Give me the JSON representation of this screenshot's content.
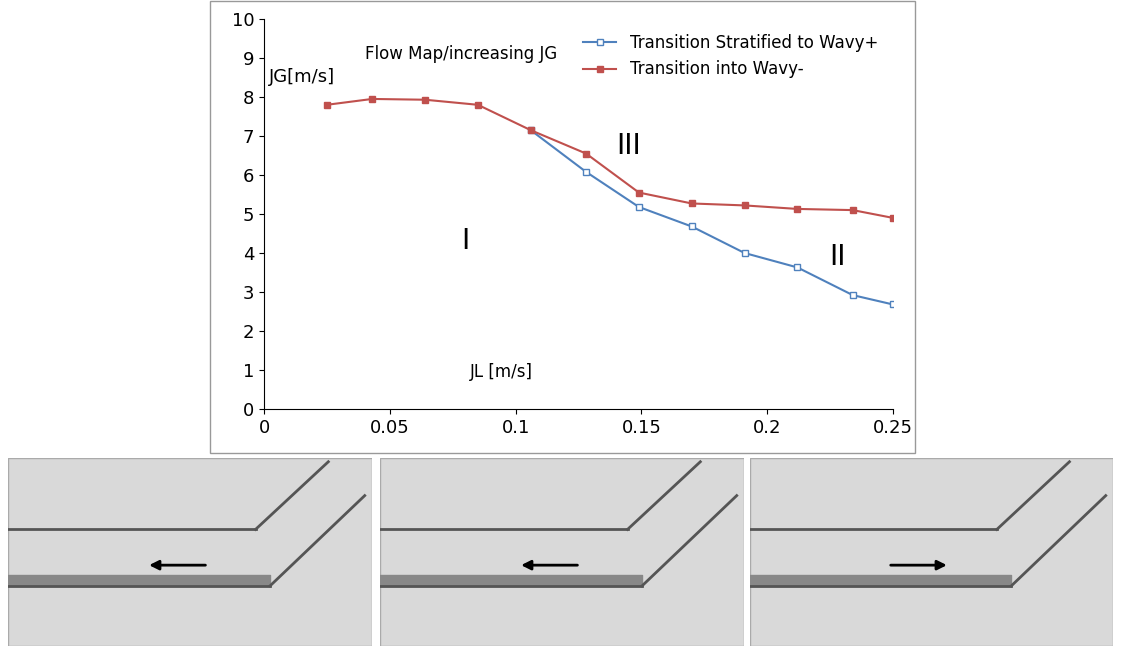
{
  "chart_data": {
    "type": "line",
    "title": "Flow Map/increasing JG",
    "x_label": "JL [m/s]",
    "y_label": "JG[m/s]",
    "annotations": [
      "I",
      "II",
      "III"
    ],
    "xlim": [
      0,
      0.25
    ],
    "xticks": [
      0,
      0.05,
      0.1,
      0.15,
      0.2,
      0.25
    ],
    "ylim": [
      0,
      10
    ],
    "yticks": [
      0,
      1,
      2,
      3,
      4,
      5,
      6,
      7,
      8,
      9,
      10
    ],
    "grid": false,
    "legend": "upper right",
    "series": [
      {
        "name": "Transition Stratified to Wavy+",
        "color": "#4f81bd",
        "marker": "square-open",
        "line_style": "solid",
        "x": [
          0.106,
          0.128,
          0.149,
          0.17,
          0.191,
          0.212,
          0.234,
          0.25
        ],
        "values": [
          7.15,
          6.08,
          5.18,
          4.68,
          4.0,
          3.63,
          2.92,
          2.68
        ]
      },
      {
        "name": "Transition into Wavy-",
        "color": "#c0504d",
        "marker": "square",
        "line_style": "solid",
        "x": [
          0.025,
          0.043,
          0.064,
          0.085,
          0.106,
          0.128,
          0.149,
          0.17,
          0.191,
          0.212,
          0.234,
          0.25
        ],
        "values": [
          7.8,
          7.95,
          7.93,
          7.8,
          7.15,
          6.55,
          5.55,
          5.27,
          5.22,
          5.13,
          5.1,
          4.9
        ]
      }
    ]
  }
}
